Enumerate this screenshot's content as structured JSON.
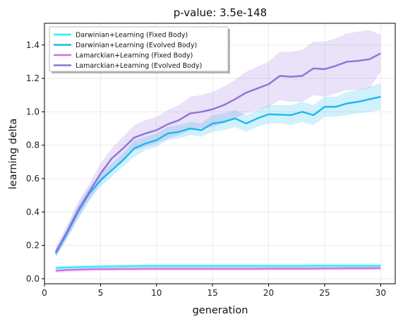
{
  "chart_data": {
    "type": "line",
    "title": "p-value: 3.5e-148",
    "xlabel": "generation",
    "ylabel": "learning delta",
    "xlim": [
      0,
      31.3
    ],
    "ylim": [
      -0.03,
      1.53
    ],
    "xticks": [
      0,
      5,
      10,
      15,
      20,
      25,
      30
    ],
    "yticks": [
      0.0,
      0.2,
      0.4,
      0.6,
      0.8,
      1.0,
      1.2,
      1.4
    ],
    "grid": true,
    "legend_position": "top-left",
    "x": [
      1,
      2,
      3,
      4,
      5,
      6,
      7,
      8,
      9,
      10,
      11,
      12,
      13,
      14,
      15,
      16,
      17,
      18,
      19,
      20,
      21,
      22,
      23,
      24,
      25,
      26,
      27,
      28,
      29,
      30
    ],
    "series": [
      {
        "name": "Darwinian+Learning (Fixed Body)",
        "color": "#2ff0f0",
        "values": [
          0.065,
          0.068,
          0.07,
          0.072,
          0.073,
          0.074,
          0.075,
          0.076,
          0.077,
          0.077,
          0.077,
          0.077,
          0.077,
          0.077,
          0.077,
          0.077,
          0.077,
          0.077,
          0.077,
          0.077,
          0.077,
          0.077,
          0.077,
          0.078,
          0.078,
          0.078,
          0.078,
          0.078,
          0.078,
          0.078
        ],
        "lower": [
          0.055,
          0.058,
          0.06,
          0.062,
          0.063,
          0.064,
          0.065,
          0.066,
          0.067,
          0.067,
          0.067,
          0.067,
          0.067,
          0.067,
          0.067,
          0.067,
          0.067,
          0.067,
          0.067,
          0.067,
          0.067,
          0.067,
          0.067,
          0.068,
          0.068,
          0.068,
          0.068,
          0.068,
          0.068,
          0.068
        ],
        "upper": [
          0.075,
          0.078,
          0.08,
          0.082,
          0.083,
          0.084,
          0.085,
          0.086,
          0.087,
          0.087,
          0.087,
          0.087,
          0.087,
          0.087,
          0.087,
          0.087,
          0.087,
          0.087,
          0.087,
          0.087,
          0.087,
          0.087,
          0.087,
          0.088,
          0.088,
          0.088,
          0.088,
          0.088,
          0.088,
          0.088
        ]
      },
      {
        "name": "Darwinian+Learning (Evolved Body)",
        "color": "#1ab8f0",
        "values": [
          0.15,
          0.27,
          0.4,
          0.51,
          0.59,
          0.65,
          0.71,
          0.78,
          0.81,
          0.83,
          0.87,
          0.88,
          0.9,
          0.89,
          0.93,
          0.94,
          0.96,
          0.93,
          0.96,
          0.985,
          0.983,
          0.98,
          1.0,
          0.98,
          1.03,
          1.03,
          1.05,
          1.06,
          1.075,
          1.09
        ],
        "lower": [
          0.13,
          0.24,
          0.36,
          0.47,
          0.55,
          0.61,
          0.67,
          0.73,
          0.77,
          0.79,
          0.83,
          0.84,
          0.86,
          0.85,
          0.88,
          0.89,
          0.91,
          0.88,
          0.91,
          0.93,
          0.93,
          0.92,
          0.94,
          0.92,
          0.97,
          0.97,
          0.98,
          0.99,
          1.0,
          1.01
        ],
        "upper": [
          0.17,
          0.3,
          0.44,
          0.55,
          0.63,
          0.69,
          0.75,
          0.83,
          0.85,
          0.87,
          0.91,
          0.92,
          0.94,
          0.93,
          0.98,
          0.99,
          1.01,
          0.98,
          1.01,
          1.04,
          1.04,
          1.04,
          1.06,
          1.04,
          1.09,
          1.09,
          1.12,
          1.13,
          1.15,
          1.17
        ]
      },
      {
        "name": "Lamarckian+Learning (Fixed Body)",
        "color": "#d070e6",
        "values": [
          0.048,
          0.053,
          0.055,
          0.057,
          0.058,
          0.058,
          0.059,
          0.059,
          0.06,
          0.06,
          0.06,
          0.06,
          0.06,
          0.06,
          0.06,
          0.06,
          0.06,
          0.06,
          0.06,
          0.061,
          0.061,
          0.061,
          0.061,
          0.061,
          0.062,
          0.062,
          0.063,
          0.063,
          0.063,
          0.064
        ],
        "lower": [
          0.035,
          0.04,
          0.043,
          0.045,
          0.046,
          0.046,
          0.047,
          0.047,
          0.048,
          0.048,
          0.048,
          0.048,
          0.048,
          0.048,
          0.048,
          0.048,
          0.048,
          0.048,
          0.048,
          0.049,
          0.049,
          0.049,
          0.049,
          0.049,
          0.05,
          0.05,
          0.05,
          0.05,
          0.05,
          0.051
        ],
        "upper": [
          0.061,
          0.066,
          0.068,
          0.07,
          0.071,
          0.071,
          0.072,
          0.072,
          0.073,
          0.073,
          0.073,
          0.073,
          0.073,
          0.073,
          0.073,
          0.073,
          0.073,
          0.073,
          0.073,
          0.074,
          0.074,
          0.074,
          0.074,
          0.074,
          0.075,
          0.075,
          0.076,
          0.076,
          0.076,
          0.077
        ]
      },
      {
        "name": "Lamarckian+Learning (Evolved Body)",
        "color": "#9370db",
        "values": [
          0.16,
          0.28,
          0.41,
          0.52,
          0.63,
          0.72,
          0.78,
          0.845,
          0.87,
          0.89,
          0.925,
          0.95,
          0.99,
          1.0,
          1.015,
          1.04,
          1.075,
          1.115,
          1.14,
          1.165,
          1.215,
          1.21,
          1.215,
          1.26,
          1.255,
          1.275,
          1.3,
          1.305,
          1.315,
          1.35
        ],
        "lower": [
          0.13,
          0.24,
          0.36,
          0.47,
          0.57,
          0.66,
          0.71,
          0.77,
          0.79,
          0.81,
          0.84,
          0.86,
          0.89,
          0.9,
          0.91,
          0.93,
          0.96,
          0.99,
          1.01,
          1.03,
          1.07,
          1.06,
          1.06,
          1.1,
          1.09,
          1.11,
          1.13,
          1.13,
          1.14,
          1.24
        ],
        "upper": [
          0.19,
          0.32,
          0.46,
          0.57,
          0.69,
          0.78,
          0.85,
          0.92,
          0.95,
          0.97,
          1.01,
          1.04,
          1.09,
          1.1,
          1.12,
          1.15,
          1.19,
          1.24,
          1.27,
          1.3,
          1.36,
          1.36,
          1.37,
          1.42,
          1.42,
          1.44,
          1.47,
          1.48,
          1.49,
          1.46
        ]
      }
    ]
  }
}
